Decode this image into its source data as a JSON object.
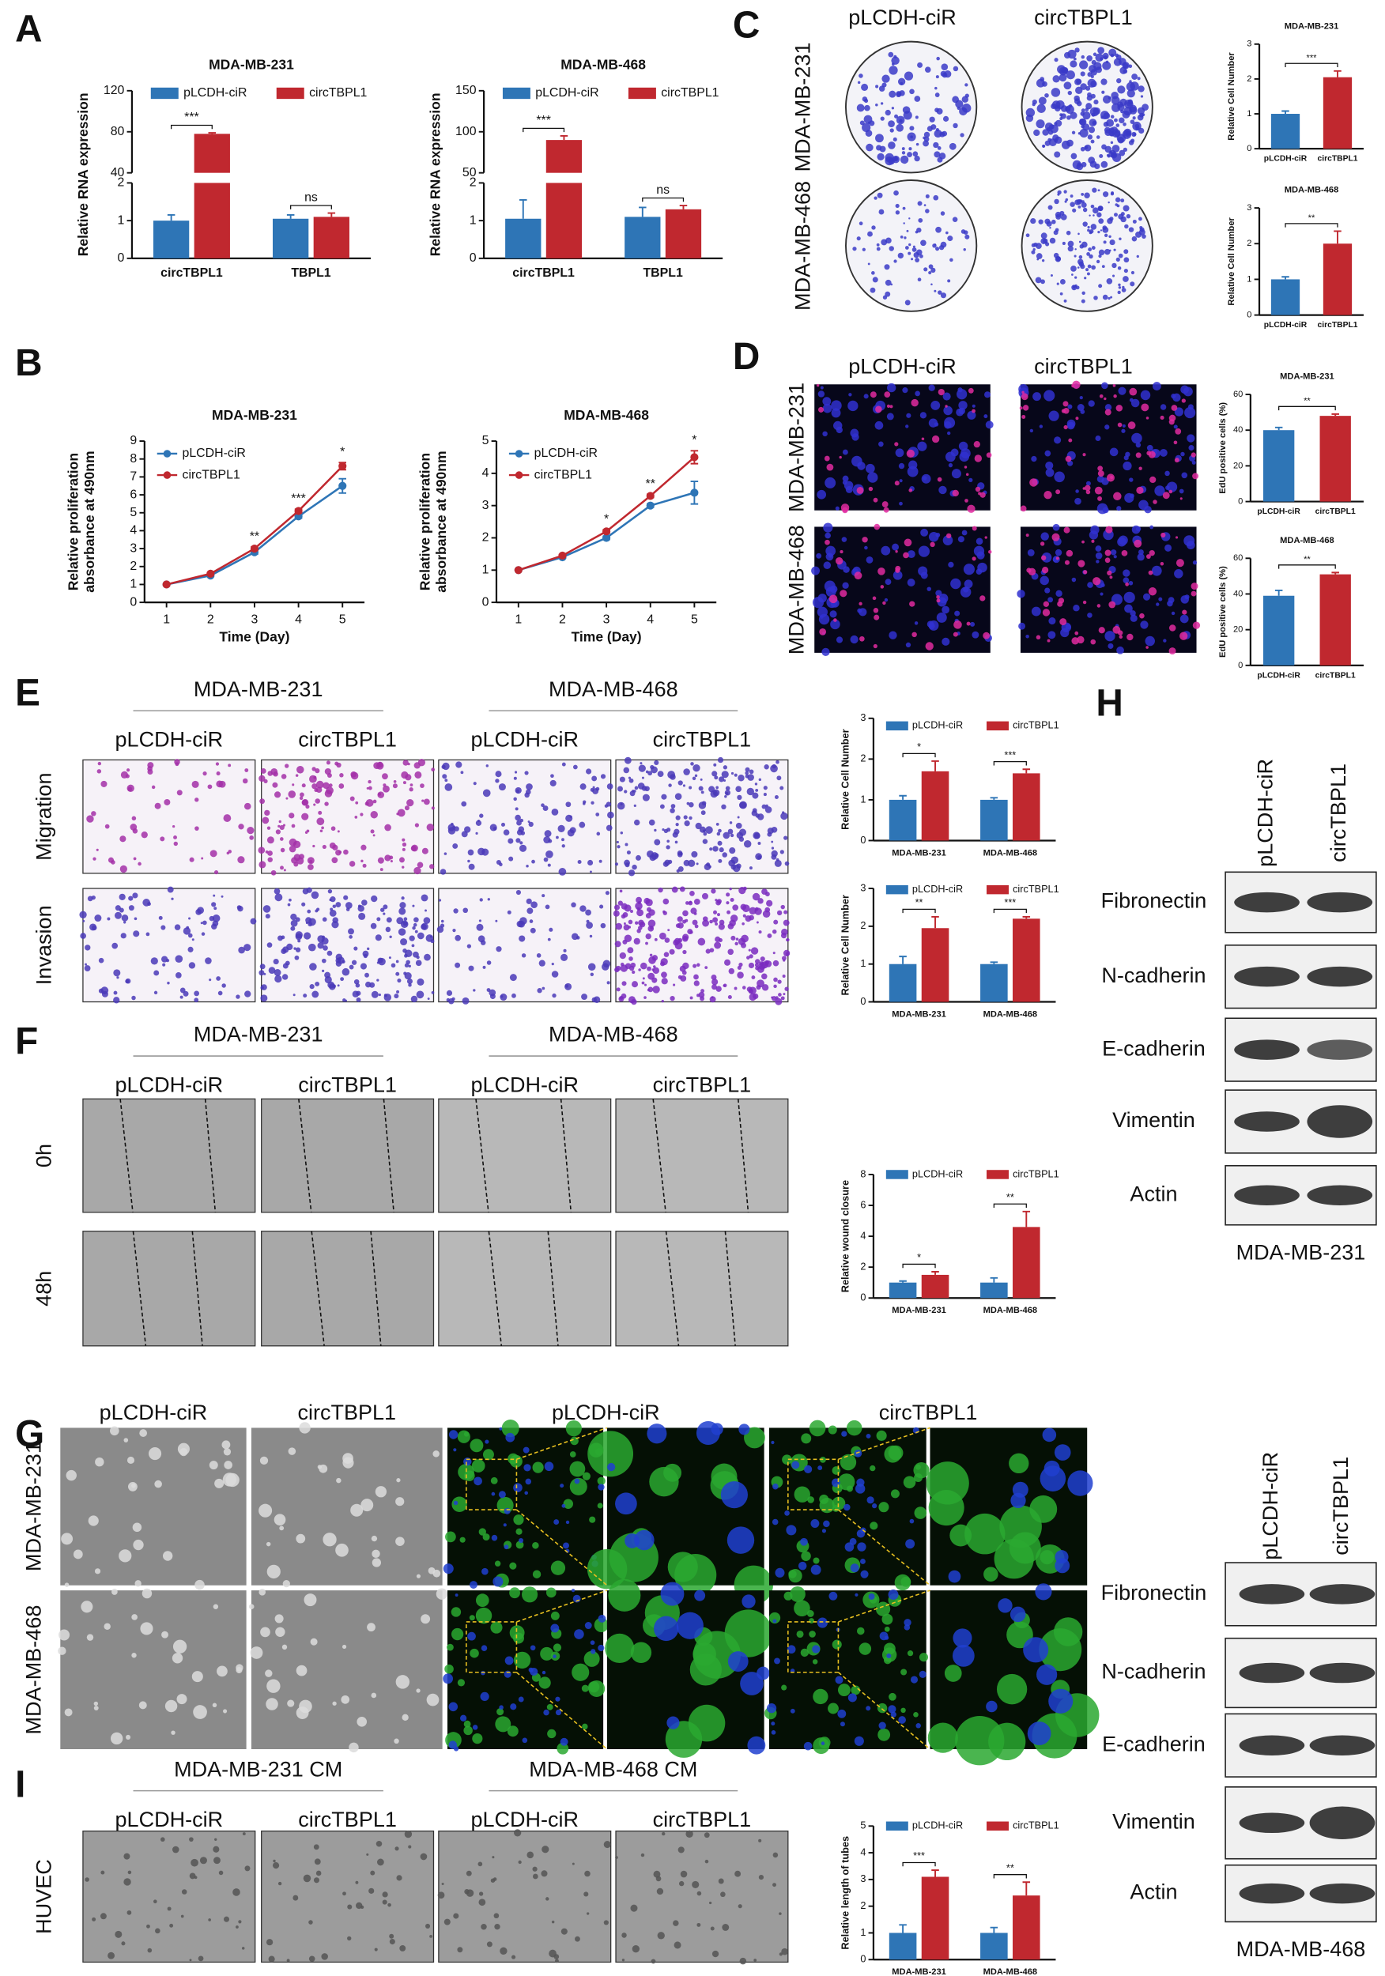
{
  "panel_labels": [
    "A",
    "B",
    "C",
    "D",
    "E",
    "F",
    "G",
    "H",
    "I"
  ],
  "chart_data": [
    {
      "type": "bar",
      "title": "MDA-MB-231",
      "ylabel": "Relative RNA expression",
      "categories": [
        "circTBPL1",
        "TBPL1"
      ],
      "series": [
        {
          "name": "pLCDH-ciR",
          "color": "#2e75b6",
          "values": [
            1,
            1.05
          ],
          "errors": [
            0.15,
            0.1
          ]
        },
        {
          "name": "circTBPL1",
          "color": "#c0282f",
          "values": [
            78,
            1.1
          ],
          "errors": [
            1,
            0.1
          ]
        }
      ],
      "ylim": [
        0,
        120
      ],
      "yticks": [
        0,
        1,
        2,
        40,
        80,
        120
      ],
      "ybreak": [
        2,
        40
      ],
      "annotations": [
        "***",
        "ns"
      ]
    },
    {
      "type": "bar",
      "title": "MDA-MB-468",
      "ylabel": "Relative RNA expression",
      "categories": [
        "circTBPL1",
        "TBPL1"
      ],
      "series": [
        {
          "name": "pLCDH-ciR",
          "color": "#2e75b6",
          "values": [
            1.05,
            1.1
          ],
          "errors": [
            0.5,
            0.25
          ]
        },
        {
          "name": "circTBPL1",
          "color": "#c0282f",
          "values": [
            90,
            1.3
          ],
          "errors": [
            5,
            0.1
          ]
        }
      ],
      "ylim": [
        0,
        150
      ],
      "yticks": [
        0,
        1,
        2,
        50,
        100,
        150
      ],
      "ybreak": [
        2,
        50
      ],
      "annotations": [
        "***",
        "ns"
      ]
    },
    {
      "type": "line",
      "title": "MDA-MB-231",
      "ylabel_lines": [
        "Relative proliferation",
        "absorbance at 490nm"
      ],
      "xlabel": "Time (Day)",
      "x": [
        1,
        2,
        3,
        4,
        5
      ],
      "xlim": [
        0.5,
        5.5
      ],
      "xticks": [
        1,
        2,
        3,
        4,
        5
      ],
      "ylim": [
        0,
        9
      ],
      "yticks": [
        0,
        1,
        2,
        3,
        4,
        5,
        6,
        7,
        8,
        9
      ],
      "series": [
        {
          "name": "pLCDH-ciR",
          "color": "#2e75b6",
          "values": [
            1,
            1.5,
            2.8,
            4.8,
            6.5
          ],
          "errors": [
            0,
            0.05,
            0.1,
            0.1,
            0.4
          ]
        },
        {
          "name": "circTBPL1",
          "color": "#c0282f",
          "values": [
            1,
            1.6,
            3.0,
            5.1,
            7.6
          ],
          "errors": [
            0,
            0.05,
            0.1,
            0.1,
            0.2
          ]
        }
      ],
      "annotations": [
        null,
        null,
        "**",
        "***",
        "*"
      ]
    },
    {
      "type": "line",
      "title": "MDA-MB-468",
      "ylabel_lines": [
        "Relative proliferation",
        "absorbance at 490nm"
      ],
      "xlabel": "Time (Day)",
      "x": [
        1,
        2,
        3,
        4,
        5
      ],
      "xlim": [
        0.5,
        5.5
      ],
      "xticks": [
        1,
        2,
        3,
        4,
        5
      ],
      "ylim": [
        0,
        5
      ],
      "yticks": [
        0,
        1,
        2,
        3,
        4,
        5
      ],
      "series": [
        {
          "name": "pLCDH-ciR",
          "color": "#2e75b6",
          "values": [
            1,
            1.4,
            2.0,
            3.0,
            3.4
          ],
          "errors": [
            0,
            0.03,
            0.05,
            0.05,
            0.35
          ]
        },
        {
          "name": "circTBPL1",
          "color": "#c0282f",
          "values": [
            1,
            1.45,
            2.2,
            3.3,
            4.5
          ],
          "errors": [
            0,
            0.03,
            0.05,
            0.05,
            0.2
          ]
        }
      ],
      "annotations": [
        null,
        null,
        "*",
        "**",
        "*"
      ]
    },
    {
      "type": "bar",
      "title": "MDA-MB-231",
      "ylabel": "Relative Cell Number",
      "categories": [
        "pLCDH-ciR",
        "circTBPL1"
      ],
      "values": [
        1,
        2.05
      ],
      "errors": [
        0.08,
        0.18
      ],
      "colors": [
        "#2e75b6",
        "#c0282f"
      ],
      "ylim": [
        0,
        3
      ],
      "yticks": [
        0,
        1,
        2,
        3
      ],
      "annotation": "***"
    },
    {
      "type": "bar",
      "title": "MDA-MB-468",
      "ylabel": "Relative Cell Number",
      "categories": [
        "pLCDH-ciR",
        "circTBPL1"
      ],
      "values": [
        1,
        2.0
      ],
      "errors": [
        0.07,
        0.35
      ],
      "colors": [
        "#2e75b6",
        "#c0282f"
      ],
      "ylim": [
        0,
        3
      ],
      "yticks": [
        0,
        1,
        2,
        3
      ],
      "annotation": "**"
    },
    {
      "type": "bar",
      "title": "MDA-MB-231",
      "ylabel": "EdU positive cells (%)",
      "categories": [
        "pLCDH-ciR",
        "circTBPL1"
      ],
      "values": [
        40,
        48
      ],
      "errors": [
        1.5,
        1
      ],
      "colors": [
        "#2e75b6",
        "#c0282f"
      ],
      "ylim": [
        0,
        60
      ],
      "yticks": [
        0,
        20,
        40,
        60
      ],
      "annotation": "**"
    },
    {
      "type": "bar",
      "title": "MDA-MB-468",
      "ylabel": "EdU positive cells (%)",
      "categories": [
        "pLCDH-ciR",
        "circTBPL1"
      ],
      "values": [
        39,
        51
      ],
      "errors": [
        3,
        1
      ],
      "colors": [
        "#2e75b6",
        "#c0282f"
      ],
      "ylim": [
        0,
        60
      ],
      "yticks": [
        0,
        20,
        40,
        60
      ],
      "annotation": "**"
    },
    {
      "type": "bar",
      "ylabel": "Relative Cell Number",
      "categories": [
        "MDA-MB-231",
        "MDA-MB-468"
      ],
      "series": [
        {
          "name": "pLCDH-ciR",
          "color": "#2e75b6",
          "values": [
            1,
            1
          ],
          "errors": [
            0.1,
            0.05
          ]
        },
        {
          "name": "circTBPL1",
          "color": "#c0282f",
          "values": [
            1.7,
            1.65
          ],
          "errors": [
            0.25,
            0.1
          ]
        }
      ],
      "ylim": [
        0,
        3
      ],
      "yticks": [
        0,
        1,
        2,
        3
      ],
      "annotations": [
        "*",
        "***"
      ]
    },
    {
      "type": "bar",
      "ylabel": "Relative Cell Number",
      "categories": [
        "MDA-MB-231",
        "MDA-MB-468"
      ],
      "series": [
        {
          "name": "pLCDH-ciR",
          "color": "#2e75b6",
          "values": [
            1,
            1
          ],
          "errors": [
            0.2,
            0.05
          ]
        },
        {
          "name": "circTBPL1",
          "color": "#c0282f",
          "values": [
            1.95,
            2.2
          ],
          "errors": [
            0.3,
            0.05
          ]
        }
      ],
      "ylim": [
        0,
        3
      ],
      "yticks": [
        0,
        1,
        2,
        3
      ],
      "annotations": [
        "**",
        "***"
      ]
    },
    {
      "type": "bar",
      "ylabel": "Relative wound closure",
      "categories": [
        "MDA-MB-231",
        "MDA-MB-468"
      ],
      "series": [
        {
          "name": "pLCDH-ciR",
          "color": "#2e75b6",
          "values": [
            1,
            1
          ],
          "errors": [
            0.1,
            0.3
          ]
        },
        {
          "name": "circTBPL1",
          "color": "#c0282f",
          "values": [
            1.5,
            4.6
          ],
          "errors": [
            0.2,
            1
          ]
        }
      ],
      "ylim": [
        0,
        8
      ],
      "yticks": [
        0,
        2,
        4,
        6,
        8
      ],
      "annotations": [
        "*",
        "**"
      ]
    },
    {
      "type": "bar",
      "ylabel": "Relative length of tubes",
      "categories": [
        "MDA-MB-231",
        "MDA-MB-468"
      ],
      "series": [
        {
          "name": "pLCDH-ciR",
          "color": "#2e75b6",
          "values": [
            1,
            1
          ],
          "errors": [
            0.3,
            0.2
          ]
        },
        {
          "name": "circTBPL1",
          "color": "#c0282f",
          "values": [
            3.1,
            2.4
          ],
          "errors": [
            0.25,
            0.5
          ]
        }
      ],
      "ylim": [
        0,
        5
      ],
      "yticks": [
        0,
        1,
        2,
        3,
        4,
        5
      ],
      "annotations": [
        "***",
        "**"
      ]
    }
  ],
  "images": {
    "C": {
      "columns": [
        "pLCDH-ciR",
        "circTBPL1"
      ],
      "rows": [
        "MDA-MB-231",
        "MDA-MB-468"
      ]
    },
    "D": {
      "columns": [
        "pLCDH-ciR",
        "circTBPL1"
      ],
      "rows": [
        "MDA-MB-231",
        "MDA-MB-468"
      ]
    },
    "E": {
      "groups": [
        "MDA-MB-231",
        "MDA-MB-468"
      ],
      "columns": [
        "pLCDH-ciR",
        "circTBPL1",
        "pLCDH-ciR",
        "circTBPL1"
      ],
      "rows": [
        "Migration",
        "Invasion"
      ]
    },
    "F": {
      "groups": [
        "MDA-MB-231",
        "MDA-MB-468"
      ],
      "columns": [
        "pLCDH-ciR",
        "circTBPL1",
        "pLCDH-ciR",
        "circTBPL1"
      ],
      "rows": [
        "0h",
        "48h"
      ]
    },
    "G": {
      "columns": [
        "pLCDH-ciR",
        "circTBPL1",
        "pLCDH-ciR",
        "circTBPL1"
      ],
      "rows": [
        "MDA-MB-231",
        "MDA-MB-468"
      ]
    },
    "I": {
      "groups": [
        "MDA-MB-231 CM",
        "MDA-MB-468 CM"
      ],
      "columns": [
        "pLCDH-ciR",
        "circTBPL1",
        "pLCDH-ciR",
        "circTBPL1"
      ],
      "rows": [
        "HUVEC"
      ]
    }
  },
  "blots": [
    {
      "lanes": [
        "pLCDH-ciR",
        "circTBPL1"
      ],
      "proteins": [
        "Fibronectin",
        "N-cadherin",
        "E-cadherin",
        "Vimentin",
        "Actin"
      ],
      "cell_line": "MDA-MB-231"
    },
    {
      "lanes": [
        "pLCDH-ciR",
        "circTBPL1"
      ],
      "proteins": [
        "Fibronectin",
        "N-cadherin",
        "E-cadherin",
        "Vimentin",
        "Actin"
      ],
      "cell_line": "MDA-MB-468"
    }
  ]
}
